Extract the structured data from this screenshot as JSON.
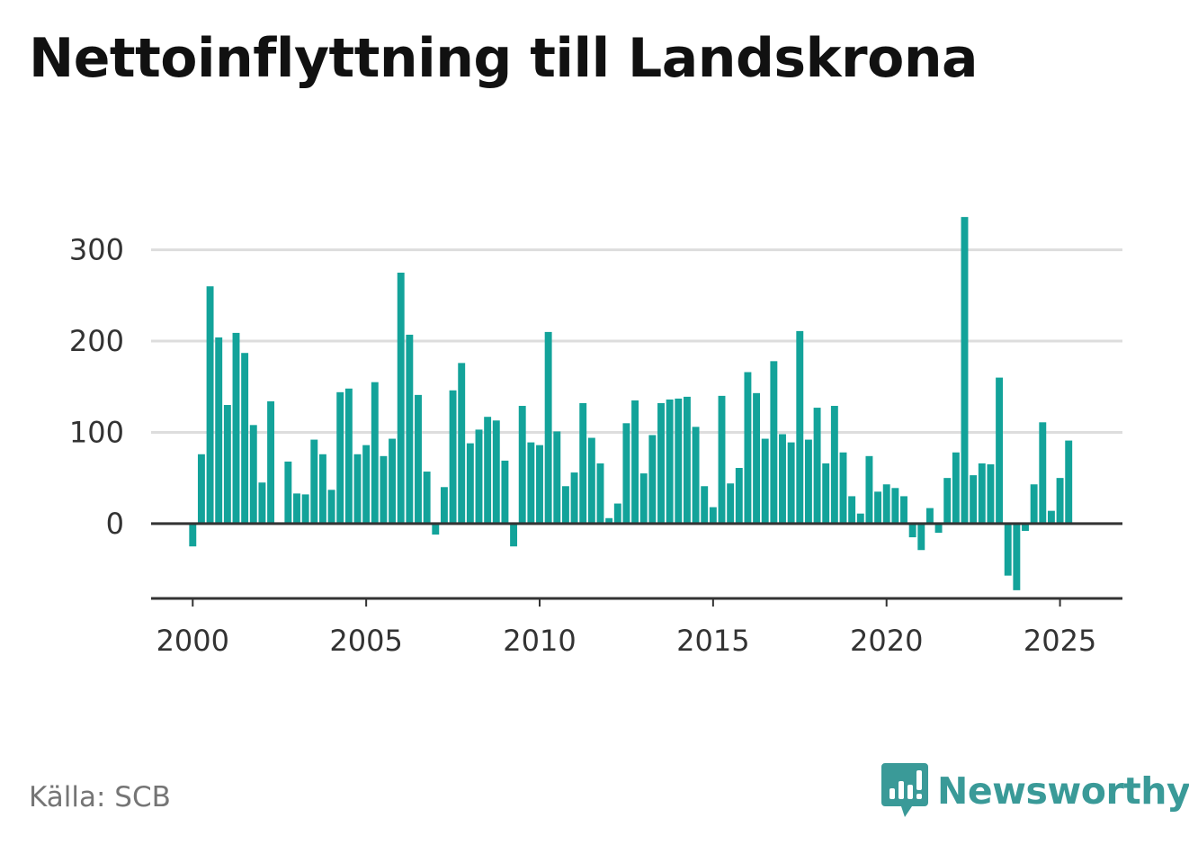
{
  "title": "Nettoinflyttning till Landskrona",
  "source": "Källa: SCB",
  "brand": {
    "name": "Newsworthy",
    "icon": "newsworthy-logo-icon"
  },
  "colors": {
    "bar": "#13a39a",
    "grid": "#dddddd",
    "axis": "#333333",
    "brand": "#3a9a98"
  },
  "chart_data": {
    "type": "bar",
    "frequency": "quarterly",
    "x_start": 2000.0,
    "x_step": 0.25,
    "xlim": [
      1998.8,
      2026.8
    ],
    "ylim": [
      -82,
      345
    ],
    "yticks": [
      0,
      100,
      200,
      300
    ],
    "xticks": [
      2000,
      2005,
      2010,
      2015,
      2020,
      2025
    ],
    "grid": true,
    "title": "Nettoinflyttning till Landskrona",
    "values": [
      -25,
      76,
      260,
      204,
      130,
      209,
      187,
      108,
      45,
      134,
      0,
      68,
      33,
      32,
      92,
      76,
      37,
      144,
      148,
      76,
      86,
      155,
      74,
      93,
      275,
      207,
      141,
      57,
      -12,
      40,
      146,
      176,
      88,
      103,
      117,
      113,
      69,
      -25,
      129,
      89,
      86,
      210,
      101,
      41,
      56,
      132,
      94,
      66,
      6,
      22,
      110,
      135,
      55,
      97,
      132,
      136,
      137,
      139,
      106,
      41,
      18,
      140,
      44,
      61,
      166,
      143,
      93,
      178,
      98,
      89,
      211,
      92,
      127,
      66,
      129,
      78,
      30,
      11,
      74,
      35,
      43,
      39,
      30,
      -15,
      -29,
      17,
      -10,
      50,
      78,
      336,
      53,
      66,
      65,
      160,
      -57,
      -73,
      -8,
      43,
      111,
      14,
      50,
      91
    ]
  }
}
